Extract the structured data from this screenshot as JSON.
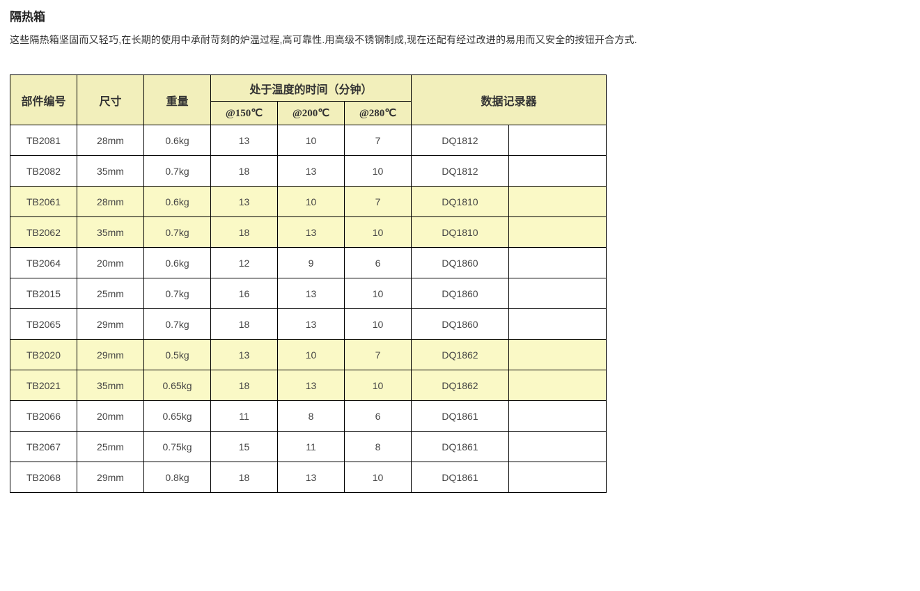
{
  "title": "隔热箱",
  "description": "这些隔热箱坚固而又轻巧,在长期的使用中承耐苛刻的炉温过程,高可靠性.用高级不锈钢制成,现在还配有经过改进的易用而又安全的按钮开合方式.",
  "table": {
    "type": "table",
    "header_bg": "#f2efbb",
    "highlight_bg": "#faf9c6",
    "border_color": "#000000",
    "columns": {
      "part_no": "部件编号",
      "size": "尺寸",
      "weight": "重量",
      "time_group": "处于温度的时间（分钟）",
      "t150": "@150℃",
      "t200": "@200℃",
      "t280": "@280℃",
      "logger": "数据记录器"
    },
    "rows": [
      {
        "part_no": "TB2081",
        "size": "28mm",
        "weight": "0.6kg",
        "t150": "13",
        "t200": "10",
        "t280": "7",
        "logger": "DQ1812",
        "blank": "",
        "highlight": false
      },
      {
        "part_no": "TB2082",
        "size": "35mm",
        "weight": "0.7kg",
        "t150": "18",
        "t200": "13",
        "t280": "10",
        "logger": "DQ1812",
        "blank": "",
        "highlight": false
      },
      {
        "part_no": "TB2061",
        "size": "28mm",
        "weight": "0.6kg",
        "t150": "13",
        "t200": "10",
        "t280": "7",
        "logger": "DQ1810",
        "blank": "",
        "highlight": true
      },
      {
        "part_no": "TB2062",
        "size": "35mm",
        "weight": "0.7kg",
        "t150": "18",
        "t200": "13",
        "t280": "10",
        "logger": "DQ1810",
        "blank": "",
        "highlight": true
      },
      {
        "part_no": "TB2064",
        "size": "20mm",
        "weight": "0.6kg",
        "t150": "12",
        "t200": "9",
        "t280": "6",
        "logger": "DQ1860",
        "blank": "",
        "highlight": false
      },
      {
        "part_no": "TB2015",
        "size": "25mm",
        "weight": "0.7kg",
        "t150": "16",
        "t200": "13",
        "t280": "10",
        "logger": "DQ1860",
        "blank": "",
        "highlight": false
      },
      {
        "part_no": "TB2065",
        "size": "29mm",
        "weight": "0.7kg",
        "t150": "18",
        "t200": "13",
        "t280": "10",
        "logger": "DQ1860",
        "blank": "",
        "highlight": false
      },
      {
        "part_no": "TB2020",
        "size": "29mm",
        "weight": "0.5kg",
        "t150": "13",
        "t200": "10",
        "t280": "7",
        "logger": "DQ1862",
        "blank": "",
        "highlight": true
      },
      {
        "part_no": "TB2021",
        "size": "35mm",
        "weight": "0.65kg",
        "t150": "18",
        "t200": "13",
        "t280": "10",
        "logger": "DQ1862",
        "blank": "",
        "highlight": true
      },
      {
        "part_no": "TB2066",
        "size": "20mm",
        "weight": "0.65kg",
        "t150": "11",
        "t200": "8",
        "t280": "6",
        "logger": "DQ1861",
        "blank": "",
        "highlight": false
      },
      {
        "part_no": "TB2067",
        "size": "25mm",
        "weight": "0.75kg",
        "t150": "15",
        "t200": "11",
        "t280": "8",
        "logger": "DQ1861",
        "blank": "",
        "highlight": false
      },
      {
        "part_no": "TB2068",
        "size": "29mm",
        "weight": "0.8kg",
        "t150": "18",
        "t200": "13",
        "t280": "10",
        "logger": "DQ1861",
        "blank": "",
        "highlight": false
      }
    ]
  }
}
